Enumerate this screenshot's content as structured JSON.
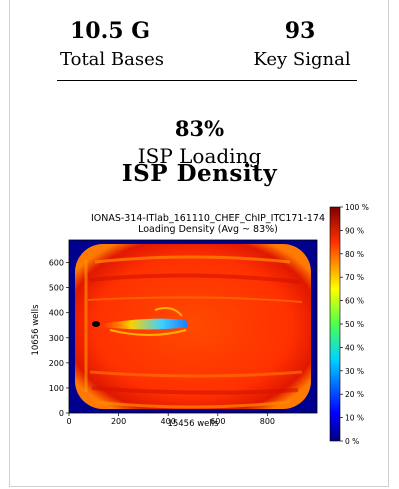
{
  "stats": {
    "total_bases_value": "10.5 G",
    "total_bases_label": "Total Bases",
    "key_signal_value": "93",
    "key_signal_label": "Key Signal"
  },
  "loading": {
    "value": "83%",
    "label": "ISP Loading"
  },
  "section_title": "ISP Density",
  "chart_data": {
    "type": "heatmap",
    "title": "IONAS-314-ITlab_161110_CHEF_ChIP_ITC171-174",
    "subtitle": "Loading Density (Avg ~ 83%)",
    "xlabel": "15456 wells",
    "ylabel": "10656 wells",
    "xlim": [
      0,
      1000
    ],
    "ylim": [
      0,
      690
    ],
    "x_ticks": [
      "0",
      "200",
      "400",
      "600",
      "800"
    ],
    "x_tick_values": [
      0,
      200,
      400,
      600,
      800
    ],
    "y_ticks": [
      "0",
      "100",
      "200",
      "300",
      "400",
      "500",
      "600"
    ],
    "y_tick_values": [
      0,
      100,
      200,
      300,
      400,
      500,
      600
    ],
    "colorbar": {
      "min": 0,
      "max": 100,
      "ticks": [
        "0 %",
        "10 %",
        "20 %",
        "30 %",
        "40 %",
        "50 %",
        "60 %",
        "70 %",
        "80 %",
        "90 %",
        "100 %"
      ],
      "tick_values": [
        0,
        10,
        20,
        30,
        40,
        50,
        60,
        70,
        80,
        90,
        100
      ]
    },
    "colors": {
      "background": "#00008f",
      "dominant": "#ff3a00",
      "high": "#d40000",
      "medium": "#ff8c00",
      "streak_core": "#2ec0ff"
    }
  }
}
